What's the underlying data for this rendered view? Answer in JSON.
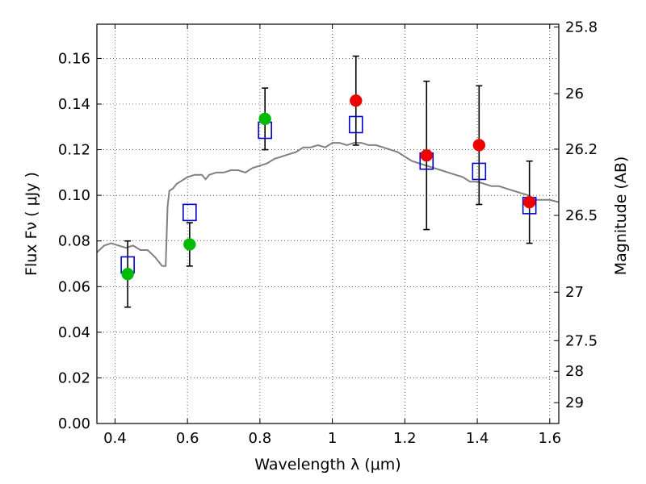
{
  "chart_data": {
    "type": "scatter",
    "title": "",
    "xlabel": "Wavelength  λ (μm)",
    "ylabel": "Flux  Fν  ( μJy )",
    "ylabel_right": "Magnitude (AB)",
    "xlim": [
      0.35,
      1.625
    ],
    "ylim": [
      0.0,
      0.175
    ],
    "grid": true,
    "x_ticks": [
      0.4,
      0.6,
      0.8,
      1.0,
      1.2,
      1.4,
      1.6
    ],
    "x_tick_labels": [
      "0.4",
      "0.6",
      "0.8",
      "1",
      "1.2",
      "1.4",
      "1.6"
    ],
    "y_ticks": [
      0.0,
      0.02,
      0.04,
      0.06,
      0.08,
      0.1,
      0.12,
      0.14,
      0.16
    ],
    "y_tick_labels": [
      "0.00",
      "0.02",
      "0.04",
      "0.06",
      "0.08",
      "0.10",
      "0.12",
      "0.14",
      "0.16"
    ],
    "right_ticks": [
      25.8,
      26,
      26.2,
      26.5,
      27,
      27.5,
      28,
      29
    ],
    "right_tick_labels": [
      "25.8",
      "26",
      "26.2",
      "26.5",
      "27",
      "27.5",
      "28",
      "29"
    ],
    "series": [
      {
        "name": "model spectrum",
        "kind": "line",
        "color": "#808080",
        "x": [
          0.35,
          0.37,
          0.39,
          0.41,
          0.43,
          0.45,
          0.47,
          0.49,
          0.51,
          0.53,
          0.54,
          0.545,
          0.55,
          0.56,
          0.57,
          0.58,
          0.59,
          0.6,
          0.62,
          0.64,
          0.65,
          0.66,
          0.68,
          0.7,
          0.72,
          0.74,
          0.76,
          0.78,
          0.8,
          0.82,
          0.84,
          0.86,
          0.88,
          0.9,
          0.92,
          0.94,
          0.96,
          0.98,
          1.0,
          1.02,
          1.04,
          1.06,
          1.08,
          1.1,
          1.12,
          1.14,
          1.16,
          1.18,
          1.2,
          1.22,
          1.24,
          1.26,
          1.28,
          1.3,
          1.32,
          1.34,
          1.36,
          1.38,
          1.4,
          1.42,
          1.44,
          1.46,
          1.48,
          1.5,
          1.52,
          1.54,
          1.56,
          1.58,
          1.6,
          1.625
        ],
        "y": [
          0.075,
          0.078,
          0.079,
          0.078,
          0.077,
          0.078,
          0.076,
          0.076,
          0.073,
          0.069,
          0.069,
          0.095,
          0.102,
          0.103,
          0.105,
          0.106,
          0.107,
          0.108,
          0.109,
          0.109,
          0.107,
          0.109,
          0.11,
          0.11,
          0.111,
          0.111,
          0.11,
          0.112,
          0.113,
          0.114,
          0.116,
          0.117,
          0.118,
          0.119,
          0.121,
          0.121,
          0.122,
          0.121,
          0.123,
          0.123,
          0.122,
          0.123,
          0.123,
          0.122,
          0.122,
          0.121,
          0.12,
          0.119,
          0.117,
          0.115,
          0.114,
          0.113,
          0.112,
          0.111,
          0.11,
          0.109,
          0.108,
          0.106,
          0.106,
          0.105,
          0.104,
          0.104,
          0.103,
          0.102,
          0.101,
          0.1,
          0.098,
          0.098,
          0.098,
          0.097
        ]
      },
      {
        "name": "green photometry",
        "kind": "points",
        "color": "#00bb00",
        "points": [
          {
            "x": 0.435,
            "y": 0.0655,
            "ylo": 0.051,
            "yhi": 0.08
          },
          {
            "x": 0.606,
            "y": 0.0785,
            "ylo": 0.069,
            "yhi": 0.088
          },
          {
            "x": 0.814,
            "y": 0.1335,
            "ylo": 0.12,
            "yhi": 0.147
          }
        ]
      },
      {
        "name": "red photometry",
        "kind": "points",
        "color": "#ee0000",
        "points": [
          {
            "x": 1.065,
            "y": 0.1415,
            "ylo": 0.122,
            "yhi": 0.161
          },
          {
            "x": 1.26,
            "y": 0.1175,
            "ylo": 0.085,
            "yhi": 0.15
          },
          {
            "x": 1.405,
            "y": 0.122,
            "ylo": 0.096,
            "yhi": 0.148
          },
          {
            "x": 1.544,
            "y": 0.097,
            "ylo": 0.079,
            "yhi": 0.115
          }
        ]
      },
      {
        "name": "model synthetic photometry",
        "kind": "squares",
        "color": "#0000cc",
        "x": [
          0.435,
          0.606,
          0.814,
          1.065,
          1.26,
          1.405,
          1.544
        ],
        "y": [
          0.0695,
          0.0925,
          0.1285,
          0.131,
          0.115,
          0.1105,
          0.0955
        ]
      }
    ]
  }
}
